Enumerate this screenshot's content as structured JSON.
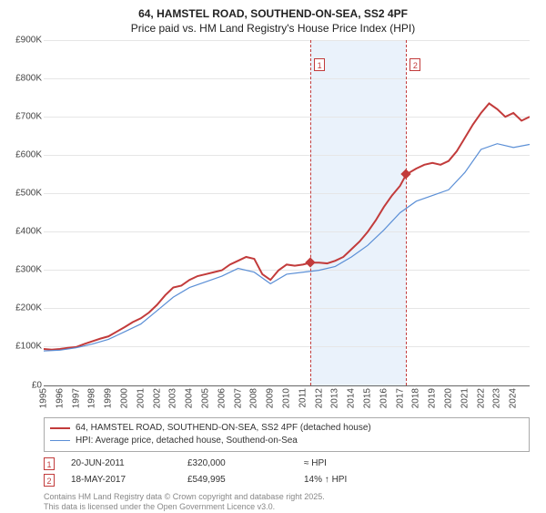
{
  "title_line1": "64, HAMSTEL ROAD, SOUTHEND-ON-SEA, SS2 4PF",
  "title_line2": "Price paid vs. HM Land Registry's House Price Index (HPI)",
  "chart": {
    "type": "line",
    "background_color": "#ffffff",
    "grid_color": "#e6e6e6",
    "shade_color": "#eaf2fb",
    "title_fontsize": 12,
    "label_fontsize": 10,
    "ylim": [
      0,
      900000
    ],
    "ytick_step": 100000,
    "yticks": [
      "£0",
      "£100K",
      "£200K",
      "£300K",
      "£400K",
      "£500K",
      "£600K",
      "£700K",
      "£800K",
      "£900K"
    ],
    "xlim": [
      1995,
      2025
    ],
    "xticks": [
      1995,
      1996,
      1997,
      1998,
      1999,
      2000,
      2001,
      2002,
      2003,
      2004,
      2005,
      2006,
      2007,
      2008,
      2009,
      2010,
      2011,
      2012,
      2013,
      2014,
      2015,
      2016,
      2017,
      2018,
      2019,
      2020,
      2021,
      2022,
      2023,
      2024
    ],
    "shade_start": 2011.47,
    "shade_end": 2017.38,
    "series": [
      {
        "name": "64, HAMSTEL ROAD, SOUTHEND-ON-SEA, SS2 4PF (detached house)",
        "color": "#c23b3b",
        "line_width": 2,
        "data": [
          [
            1995,
            95000
          ],
          [
            1995.5,
            93000
          ],
          [
            1996,
            95000
          ],
          [
            1996.5,
            98000
          ],
          [
            1997,
            100000
          ],
          [
            1997.5,
            108000
          ],
          [
            1998,
            115000
          ],
          [
            1998.5,
            122000
          ],
          [
            1999,
            128000
          ],
          [
            1999.5,
            140000
          ],
          [
            2000,
            152000
          ],
          [
            2000.5,
            165000
          ],
          [
            2001,
            175000
          ],
          [
            2001.5,
            190000
          ],
          [
            2002,
            210000
          ],
          [
            2002.5,
            235000
          ],
          [
            2003,
            255000
          ],
          [
            2003.5,
            260000
          ],
          [
            2004,
            275000
          ],
          [
            2004.5,
            285000
          ],
          [
            2005,
            290000
          ],
          [
            2005.5,
            295000
          ],
          [
            2006,
            300000
          ],
          [
            2006.5,
            315000
          ],
          [
            2007,
            325000
          ],
          [
            2007.5,
            335000
          ],
          [
            2008,
            330000
          ],
          [
            2008.5,
            290000
          ],
          [
            2009,
            275000
          ],
          [
            2009.5,
            300000
          ],
          [
            2010,
            315000
          ],
          [
            2010.5,
            312000
          ],
          [
            2011,
            315000
          ],
          [
            2011.47,
            320000
          ],
          [
            2012,
            320000
          ],
          [
            2012.5,
            318000
          ],
          [
            2013,
            325000
          ],
          [
            2013.5,
            335000
          ],
          [
            2014,
            355000
          ],
          [
            2014.5,
            375000
          ],
          [
            2015,
            400000
          ],
          [
            2015.5,
            430000
          ],
          [
            2016,
            465000
          ],
          [
            2016.5,
            495000
          ],
          [
            2017,
            520000
          ],
          [
            2017.38,
            549995
          ],
          [
            2018,
            565000
          ],
          [
            2018.5,
            575000
          ],
          [
            2019,
            580000
          ],
          [
            2019.5,
            575000
          ],
          [
            2020,
            585000
          ],
          [
            2020.5,
            610000
          ],
          [
            2021,
            645000
          ],
          [
            2021.5,
            680000
          ],
          [
            2022,
            710000
          ],
          [
            2022.5,
            735000
          ],
          [
            2023,
            720000
          ],
          [
            2023.5,
            700000
          ],
          [
            2024,
            710000
          ],
          [
            2024.5,
            690000
          ],
          [
            2025,
            700000
          ]
        ]
      },
      {
        "name": "HPI: Average price, detached house, Southend-on-Sea",
        "color": "#5b8fd6",
        "line_width": 1.2,
        "data": [
          [
            1995,
            90000
          ],
          [
            1996,
            92000
          ],
          [
            1997,
            98000
          ],
          [
            1998,
            108000
          ],
          [
            1999,
            120000
          ],
          [
            2000,
            140000
          ],
          [
            2001,
            160000
          ],
          [
            2002,
            195000
          ],
          [
            2003,
            230000
          ],
          [
            2004,
            255000
          ],
          [
            2005,
            270000
          ],
          [
            2006,
            285000
          ],
          [
            2007,
            305000
          ],
          [
            2008,
            295000
          ],
          [
            2009,
            265000
          ],
          [
            2010,
            290000
          ],
          [
            2011,
            295000
          ],
          [
            2012,
            300000
          ],
          [
            2013,
            310000
          ],
          [
            2014,
            335000
          ],
          [
            2015,
            365000
          ],
          [
            2016,
            405000
          ],
          [
            2017,
            450000
          ],
          [
            2018,
            480000
          ],
          [
            2019,
            495000
          ],
          [
            2020,
            510000
          ],
          [
            2021,
            555000
          ],
          [
            2022,
            615000
          ],
          [
            2023,
            630000
          ],
          [
            2024,
            620000
          ],
          [
            2025,
            628000
          ]
        ]
      }
    ],
    "markers": [
      {
        "num": "1",
        "x": 2011.47,
        "y": 320000
      },
      {
        "num": "2",
        "x": 2017.38,
        "y": 549995
      }
    ]
  },
  "legend": {
    "items": [
      {
        "label": "64, HAMSTEL ROAD, SOUTHEND-ON-SEA, SS2 4PF (detached house)",
        "color": "#c23b3b",
        "width": 2
      },
      {
        "label": "HPI: Average price, detached house, Southend-on-Sea",
        "color": "#5b8fd6",
        "width": 1
      }
    ]
  },
  "transactions": [
    {
      "num": "1",
      "date": "20-JUN-2011",
      "price": "£320,000",
      "delta": "≈ HPI"
    },
    {
      "num": "2",
      "date": "18-MAY-2017",
      "price": "£549,995",
      "delta": "14% ↑ HPI"
    }
  ],
  "attribution": {
    "line1": "Contains HM Land Registry data © Crown copyright and database right 2025.",
    "line2": "This data is licensed under the Open Government Licence v3.0."
  }
}
